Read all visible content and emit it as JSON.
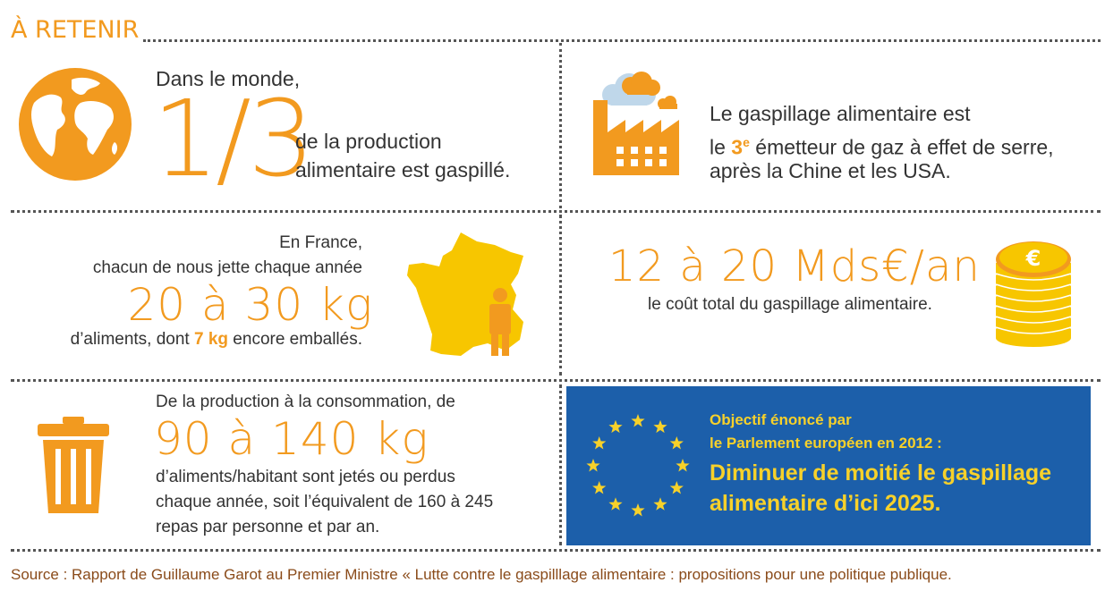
{
  "header": {
    "title": "À RETENIR"
  },
  "colors": {
    "accent": "#F29A1F",
    "yellow": "#F7C600",
    "eu_blue": "#1C5FAA",
    "eu_text": "#F7D12A",
    "source": "#8A4B1A"
  },
  "block1": {
    "icon": "globe-icon",
    "line1": "Dans le monde,",
    "big": "1/3",
    "line2": "de la production",
    "line3": "alimentaire est gaspillé."
  },
  "block2": {
    "icon": "factory-icon",
    "line1": "Le gaspillage alimentaire est",
    "line2_pre": "le ",
    "rank": "3",
    "rank_sup": "e",
    "line2_post": " émetteur de gaz à effet de serre,",
    "line3": "après la Chine et les USA."
  },
  "block3": {
    "icon": "france-map-icon",
    "line1": "En France,",
    "line2": "chacun de nous jette chaque année",
    "big": "20 à 30 kg",
    "line3_pre": "d’aliments, dont ",
    "highlight": "7 kg",
    "line3_post": " encore emballés."
  },
  "block4": {
    "icon": "euro-coins-icon",
    "big": "12 à 20 Mds€/an :",
    "line1": "le coût total du gaspillage alimentaire."
  },
  "block5": {
    "icon": "trash-bin-icon",
    "line1": "De la production à la consommation, de",
    "big": "90 à 140 kg",
    "line2": "d’aliments/habitant sont jetés ou perdus",
    "line3": "chaque année, soit l’équivalent de 160 à 245",
    "line4": "repas par personne et par an."
  },
  "block6": {
    "icon": "eu-flag-icon",
    "line1": "Objectif énoncé par",
    "line2": "le Parlement européen en 2012 :",
    "line3": "Diminuer de moitié le gaspillage",
    "line4": "alimentaire d’ici 2025."
  },
  "source": "Source : Rapport de Guillaume Garot au Premier Ministre « Lutte contre le gaspilllage alimentaire : propositions pour une politique publique."
}
